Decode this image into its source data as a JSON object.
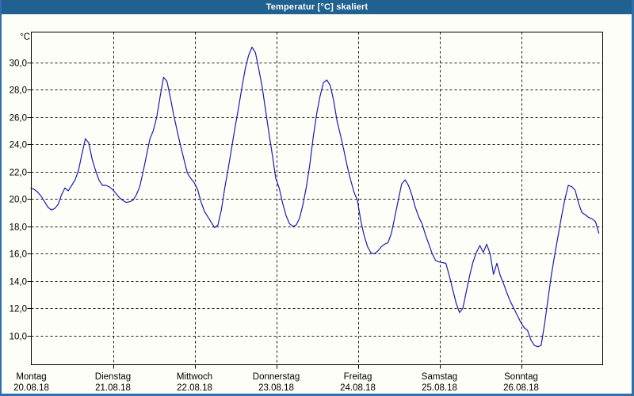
{
  "window": {
    "title": "Temperatur [°C] skaliert"
  },
  "colors": {
    "title_bar": "#20618F",
    "frame": "#2F6FB0",
    "background": "#FDFEF7",
    "line": "#1C1CB0",
    "grid": "#1A1A1A",
    "text": "#000000"
  },
  "chart_data": {
    "type": "line",
    "title": "Temperatur [°C] skaliert",
    "ylabel": "°C",
    "xlabel": "",
    "ylim": [
      7.9,
      32.2
    ],
    "grid": "dashed",
    "legend": "none",
    "y_ticks": [
      30,
      28,
      26,
      24,
      22,
      20,
      18,
      16,
      14,
      12,
      10
    ],
    "y_tick_labels": [
      "30,0",
      "28,0",
      "26,0",
      "24,0",
      "22,0",
      "20,0",
      "18,0",
      "16,0",
      "14,0",
      "12,0",
      "10,0"
    ],
    "x_days": [
      {
        "name": "Montag",
        "date": "20.08.18"
      },
      {
        "name": "Dienstag",
        "date": "21.08.18"
      },
      {
        "name": "Mittwoch",
        "date": "22.08.18"
      },
      {
        "name": "Donnerstag",
        "date": "23.08.18"
      },
      {
        "name": "Freitag",
        "date": "24.08.18"
      },
      {
        "name": "Samstag",
        "date": "25.08.18"
      },
      {
        "name": "Sonntag",
        "date": "26.08.18"
      }
    ],
    "sampling": "hourly, starting Montag 00:00",
    "series": [
      {
        "name": "Temperatur",
        "values": [
          20.8,
          20.7,
          20.5,
          20.2,
          19.8,
          19.4,
          19.2,
          19.3,
          19.6,
          20.3,
          20.8,
          20.6,
          21.0,
          21.4,
          22.1,
          23.3,
          24.4,
          24.1,
          22.9,
          22.1,
          21.4,
          21.0,
          21.0,
          20.9,
          20.7,
          20.4,
          20.1,
          19.9,
          19.75,
          19.8,
          19.9,
          20.3,
          20.9,
          22.0,
          23.2,
          24.4,
          25.0,
          26.0,
          27.5,
          28.9,
          28.6,
          27.4,
          26.1,
          25.0,
          23.9,
          22.9,
          21.9,
          21.5,
          21.2,
          20.7,
          19.8,
          19.1,
          18.7,
          18.3,
          17.9,
          18.1,
          19.2,
          20.8,
          22.2,
          23.7,
          25.2,
          26.6,
          28.1,
          29.5,
          30.5,
          31.1,
          30.7,
          29.5,
          28.2,
          26.5,
          24.8,
          23.2,
          21.5,
          20.8,
          19.7,
          18.8,
          18.2,
          18.0,
          18.1,
          18.6,
          19.6,
          20.9,
          22.5,
          24.5,
          26.2,
          27.5,
          28.5,
          28.7,
          28.3,
          27.2,
          25.7,
          24.7,
          23.6,
          22.4,
          21.4,
          20.5,
          19.9,
          18.4,
          17.3,
          16.5,
          16.05,
          16.0,
          16.2,
          16.5,
          16.7,
          16.8,
          17.5,
          18.7,
          19.9,
          21.1,
          21.4,
          21.0,
          20.3,
          19.4,
          18.7,
          18.2,
          17.4,
          16.7,
          16.0,
          15.5,
          15.4,
          15.35,
          15.3,
          14.4,
          13.4,
          12.4,
          11.7,
          12.0,
          13.2,
          14.4,
          15.4,
          16.1,
          16.6,
          16.1,
          16.7,
          16.0,
          14.5,
          15.3,
          14.4,
          13.8,
          13.1,
          12.5,
          12.0,
          11.5,
          11.0,
          10.6,
          10.4,
          9.7,
          9.3,
          9.2,
          9.3,
          10.8,
          12.6,
          14.4,
          15.9,
          17.3,
          18.7,
          20.0,
          21.0,
          20.9,
          20.65,
          19.7,
          19.0,
          18.85,
          18.65,
          18.55,
          18.35,
          17.5
        ]
      }
    ]
  }
}
